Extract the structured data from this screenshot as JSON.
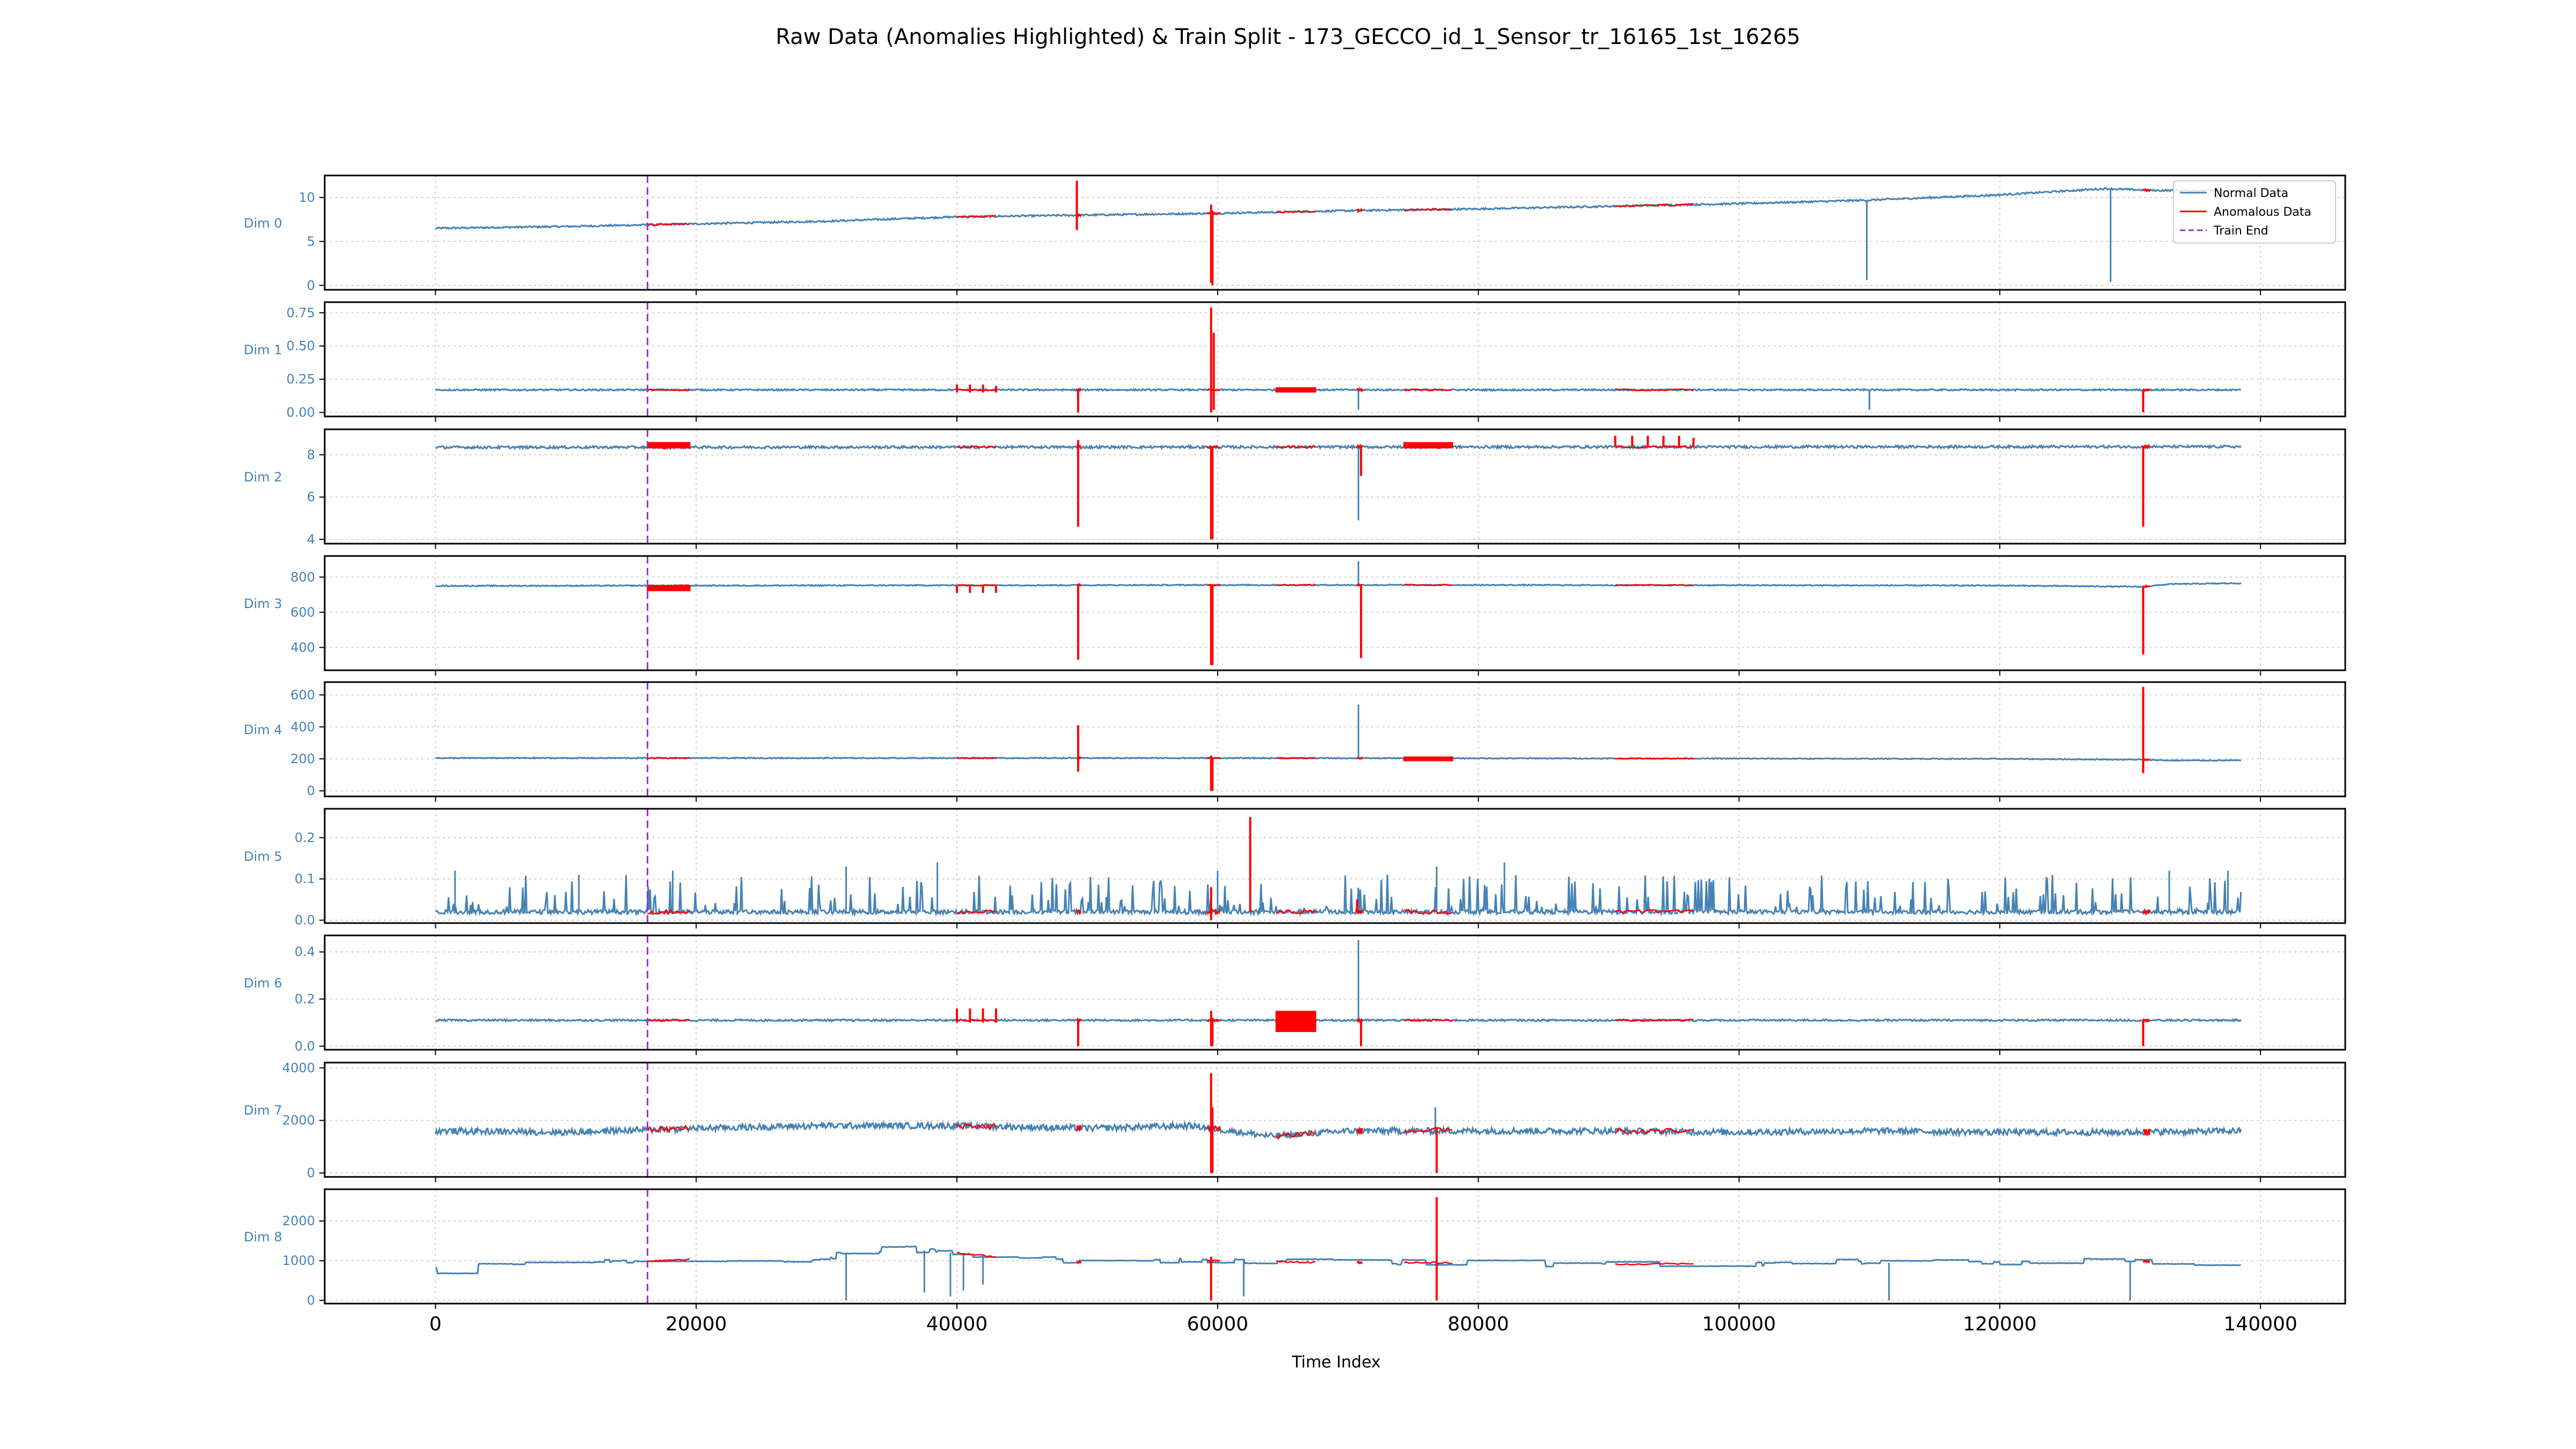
{
  "chart_data": {
    "type": "line",
    "title": "Raw Data (Anomalies Highlighted) & Train Split - 173_GECCO_id_1_Sensor_tr_16165_1st_16265",
    "xlabel": "Time Index",
    "xlim": [
      -8500,
      146500
    ],
    "x_ticks": [
      0,
      20000,
      40000,
      60000,
      80000,
      100000,
      120000,
      140000
    ],
    "x_tick_labels": [
      "0",
      "20000",
      "40000",
      "60000",
      "80000",
      "100000",
      "120000",
      "140000"
    ],
    "grid": true,
    "train_end": 16265,
    "x_end": 138500,
    "legend": {
      "placement": "upper right of first panel",
      "entries": [
        {
          "label": "Normal Data",
          "style": "line",
          "color": "#4682b4"
        },
        {
          "label": "Anomalous Data",
          "style": "line",
          "color": "#ff0000"
        },
        {
          "label": "Train End",
          "style": "dashed",
          "color": "#9932cc"
        }
      ]
    },
    "colors": {
      "normal": "#4682b4",
      "anomaly": "#ff0000",
      "train_end": "#9932cc",
      "axis_label": "#4682b4"
    },
    "anomaly_segments": [
      [
        16265,
        19500
      ],
      [
        40000,
        43000
      ],
      [
        49200,
        49500
      ],
      [
        59200,
        60200
      ],
      [
        64500,
        67500
      ],
      [
        70700,
        71100
      ],
      [
        74300,
        78000
      ],
      [
        90500,
        96500
      ],
      [
        131000,
        131500
      ]
    ],
    "panels": [
      {
        "label": "Dim 0",
        "ylim": [
          -0.5,
          12.5
        ],
        "yticks": [
          0,
          5,
          10
        ],
        "ytick_labels": [
          "0",
          "5",
          "10"
        ],
        "series": {
          "points": [
            [
              0,
              6.5
            ],
            [
              10000,
              6.7
            ],
            [
              20000,
              7.0
            ],
            [
              30000,
              7.3
            ],
            [
              40000,
              7.8
            ],
            [
              50000,
              8.0
            ],
            [
              60000,
              8.2
            ],
            [
              70000,
              8.5
            ],
            [
              80000,
              8.7
            ],
            [
              90000,
              9.0
            ],
            [
              100000,
              9.3
            ],
            [
              110000,
              9.7
            ],
            [
              120000,
              10.3
            ],
            [
              128000,
              11.0
            ],
            [
              132000,
              10.8
            ],
            [
              138500,
              10.8
            ]
          ],
          "noise": 0.1,
          "spikes": [
            [
              109800,
              0.6
            ],
            [
              128500,
              0.4
            ]
          ]
        },
        "anomaly_spikes": [
          [
            49200,
            6.3,
            11.9
          ],
          [
            59500,
            0.3,
            9.2
          ],
          [
            59600,
            0.0,
            8.5
          ]
        ]
      },
      {
        "label": "Dim 1",
        "ylim": [
          -0.03,
          0.83
        ],
        "yticks": [
          0,
          0.25,
          0.5,
          0.75
        ],
        "ytick_labels": [
          "0.00",
          "0.25",
          "0.50",
          "0.75"
        ],
        "series": {
          "points": [
            [
              0,
              0.17
            ],
            [
              138500,
              0.17
            ]
          ],
          "noise": 0.006,
          "spikes": [
            [
              70800,
              0.02
            ],
            [
              110000,
              0.02
            ]
          ]
        },
        "anomaly_spikes": [
          [
            40000,
            0.15,
            0.21
          ],
          [
            41000,
            0.15,
            0.21
          ],
          [
            42000,
            0.15,
            0.21
          ],
          [
            43000,
            0.15,
            0.2
          ],
          [
            49300,
            0.0,
            0.17
          ],
          [
            59500,
            0.0,
            0.79
          ],
          [
            59700,
            0.02,
            0.6
          ],
          [
            131000,
            0.0,
            0.17
          ]
        ],
        "anomaly_bands": [
          [
            64500,
            67500,
            0.15,
            0.19
          ]
        ]
      },
      {
        "label": "Dim 2",
        "ylim": [
          3.8,
          9.2
        ],
        "yticks": [
          4,
          6,
          8
        ],
        "ytick_labels": [
          "4",
          "6",
          "8"
        ],
        "series": {
          "points": [
            [
              0,
              8.35
            ],
            [
              138500,
              8.38
            ]
          ],
          "noise": 0.06,
          "spikes": [
            [
              70800,
              4.9
            ]
          ]
        },
        "anomaly_spikes": [
          [
            49300,
            4.6,
            8.7
          ],
          [
            59500,
            4.0,
            8.4
          ],
          [
            59600,
            4.0,
            8.3
          ],
          [
            71000,
            7.0,
            8.3
          ],
          [
            90500,
            8.4,
            8.9
          ],
          [
            91800,
            8.4,
            8.9
          ],
          [
            93000,
            8.4,
            8.9
          ],
          [
            94200,
            8.4,
            8.9
          ],
          [
            95400,
            8.4,
            8.9
          ],
          [
            96500,
            8.4,
            8.8
          ],
          [
            131000,
            4.6,
            8.4
          ]
        ],
        "anomaly_bands": [
          [
            16265,
            19500,
            8.3,
            8.6
          ],
          [
            74300,
            78000,
            8.3,
            8.6
          ]
        ]
      },
      {
        "label": "Dim 3",
        "ylim": [
          270,
          920
        ],
        "yticks": [
          400,
          600,
          800
        ],
        "ytick_labels": [
          "400",
          "600",
          "800"
        ],
        "series": {
          "points": [
            [
              0,
              750
            ],
            [
              60000,
              755
            ],
            [
              80000,
              755
            ],
            [
              120000,
              752
            ],
            [
              131000,
              745
            ],
            [
              133000,
              760
            ],
            [
              138500,
              765
            ]
          ],
          "noise": 3,
          "spikes": [
            [
              70800,
              890
            ]
          ]
        },
        "anomaly_spikes": [
          [
            40000,
            710,
            750
          ],
          [
            41000,
            710,
            750
          ],
          [
            42000,
            710,
            750
          ],
          [
            43000,
            710,
            750
          ],
          [
            49300,
            330,
            750
          ],
          [
            59500,
            300,
            760
          ],
          [
            59600,
            300,
            750
          ],
          [
            71000,
            340,
            750
          ],
          [
            131000,
            360,
            745
          ]
        ],
        "anomaly_bands": [
          [
            16265,
            19500,
            720,
            755
          ]
        ]
      },
      {
        "label": "Dim 4",
        "ylim": [
          -35,
          680
        ],
        "yticks": [
          0,
          200,
          400,
          600
        ],
        "ytick_labels": [
          "0",
          "200",
          "400",
          "600"
        ],
        "series": {
          "points": [
            [
              0,
              205
            ],
            [
              60000,
              205
            ],
            [
              120000,
              200
            ],
            [
              131000,
              195
            ],
            [
              133000,
              190
            ],
            [
              138500,
              190
            ]
          ],
          "noise": 3,
          "spikes": [
            [
              70800,
              540
            ]
          ]
        },
        "anomaly_spikes": [
          [
            49300,
            120,
            410
          ],
          [
            59500,
            0,
            220
          ],
          [
            59600,
            0,
            200
          ],
          [
            131000,
            110,
            650
          ]
        ],
        "anomaly_bands": [
          [
            74300,
            78000,
            185,
            215
          ]
        ]
      },
      {
        "label": "Dim 5",
        "ylim": [
          -0.007,
          0.27
        ],
        "yticks": [
          0,
          0.1,
          0.2
        ],
        "ytick_labels": [
          "0.0",
          "0.1",
          "0.2"
        ],
        "series": {
          "points": [
            [
              0,
              0.02
            ],
            [
              138500,
              0.02
            ]
          ],
          "noise": 0.005,
          "spiky": true,
          "spikes": [
            [
              1500,
              0.12
            ],
            [
              11000,
              0.11
            ],
            [
              18200,
              0.12
            ],
            [
              31500,
              0.13
            ],
            [
              38500,
              0.14
            ],
            [
              60000,
              0.12
            ],
            [
              76800,
              0.13
            ],
            [
              82000,
              0.14
            ],
            [
              133000,
              0.12
            ],
            [
              137500,
              0.12
            ]
          ]
        },
        "anomaly_spikes": [
          [
            59500,
            0.0,
            0.08
          ],
          [
            62500,
            0.02,
            0.25
          ],
          [
            70700,
            0.02,
            0.05
          ]
        ]
      },
      {
        "label": "Dim 6",
        "ylim": [
          -0.015,
          0.47
        ],
        "yticks": [
          0,
          0.2,
          0.4
        ],
        "ytick_labels": [
          "0.0",
          "0.2",
          "0.4"
        ],
        "series": {
          "points": [
            [
              0,
              0.11
            ],
            [
              138500,
              0.11
            ]
          ],
          "noise": 0.004,
          "spikes": [
            [
              70800,
              0.45
            ]
          ]
        },
        "anomaly_spikes": [
          [
            40000,
            0.1,
            0.16
          ],
          [
            41000,
            0.1,
            0.16
          ],
          [
            42000,
            0.1,
            0.16
          ],
          [
            43000,
            0.1,
            0.16
          ],
          [
            49300,
            0.0,
            0.11
          ],
          [
            59500,
            0.0,
            0.15
          ],
          [
            59600,
            0.0,
            0.12
          ],
          [
            71000,
            0.0,
            0.11
          ],
          [
            131000,
            0.0,
            0.11
          ]
        ],
        "anomaly_bands": [
          [
            64500,
            67500,
            0.06,
            0.15
          ]
        ]
      },
      {
        "label": "Dim 7",
        "ylim": [
          -150,
          4200
        ],
        "yticks": [
          0,
          2000,
          4000
        ],
        "ytick_labels": [
          "0",
          "2000",
          "4000"
        ],
        "series": {
          "points": [
            [
              0,
              1600
            ],
            [
              10000,
              1550
            ],
            [
              20000,
              1700
            ],
            [
              30000,
              1800
            ],
            [
              40000,
              1800
            ],
            [
              50000,
              1700
            ],
            [
              58000,
              1800
            ],
            [
              61000,
              1600
            ],
            [
              64000,
              1400
            ],
            [
              70000,
              1600
            ],
            [
              80000,
              1600
            ],
            [
              90000,
              1600
            ],
            [
              100000,
              1550
            ],
            [
              110000,
              1600
            ],
            [
              120000,
              1550
            ],
            [
              130000,
              1550
            ],
            [
              138500,
              1600
            ]
          ],
          "noise": 120,
          "spikes": [
            [
              76700,
              2500
            ]
          ]
        },
        "anomaly_spikes": [
          [
            59500,
            0,
            3800
          ],
          [
            59600,
            0,
            2500
          ],
          [
            76800,
            0,
            1700
          ]
        ]
      },
      {
        "label": "Dim 8",
        "ylim": [
          -80,
          2800
        ],
        "yticks": [
          0,
          1000,
          2000
        ],
        "ytick_labels": [
          "0",
          "1000",
          "2000"
        ],
        "series": {
          "points": [
            [
              0,
              750
            ],
            [
              5000,
              950
            ],
            [
              10000,
              900
            ],
            [
              20000,
              1050
            ],
            [
              25000,
              1000
            ],
            [
              30000,
              1100
            ],
            [
              35000,
              1300
            ],
            [
              38000,
              1250
            ],
            [
              43000,
              1100
            ],
            [
              50000,
              950
            ],
            [
              60000,
              1000
            ],
            [
              70000,
              950
            ],
            [
              80000,
              950
            ],
            [
              90000,
              900
            ],
            [
              100000,
              950
            ],
            [
              110000,
              950
            ],
            [
              120000,
              950
            ],
            [
              130000,
              1000
            ],
            [
              138500,
              900
            ]
          ],
          "noise": 40,
          "steps": true,
          "spikes": [
            [
              31500,
              0
            ],
            [
              37500,
              200
            ],
            [
              39500,
              100
            ],
            [
              40500,
              250
            ],
            [
              42000,
              400
            ],
            [
              62000,
              100
            ],
            [
              111500,
              0
            ],
            [
              130000,
              0
            ]
          ]
        },
        "anomaly_spikes": [
          [
            59500,
            0,
            1100
          ],
          [
            76800,
            0,
            2600
          ]
        ]
      }
    ]
  }
}
